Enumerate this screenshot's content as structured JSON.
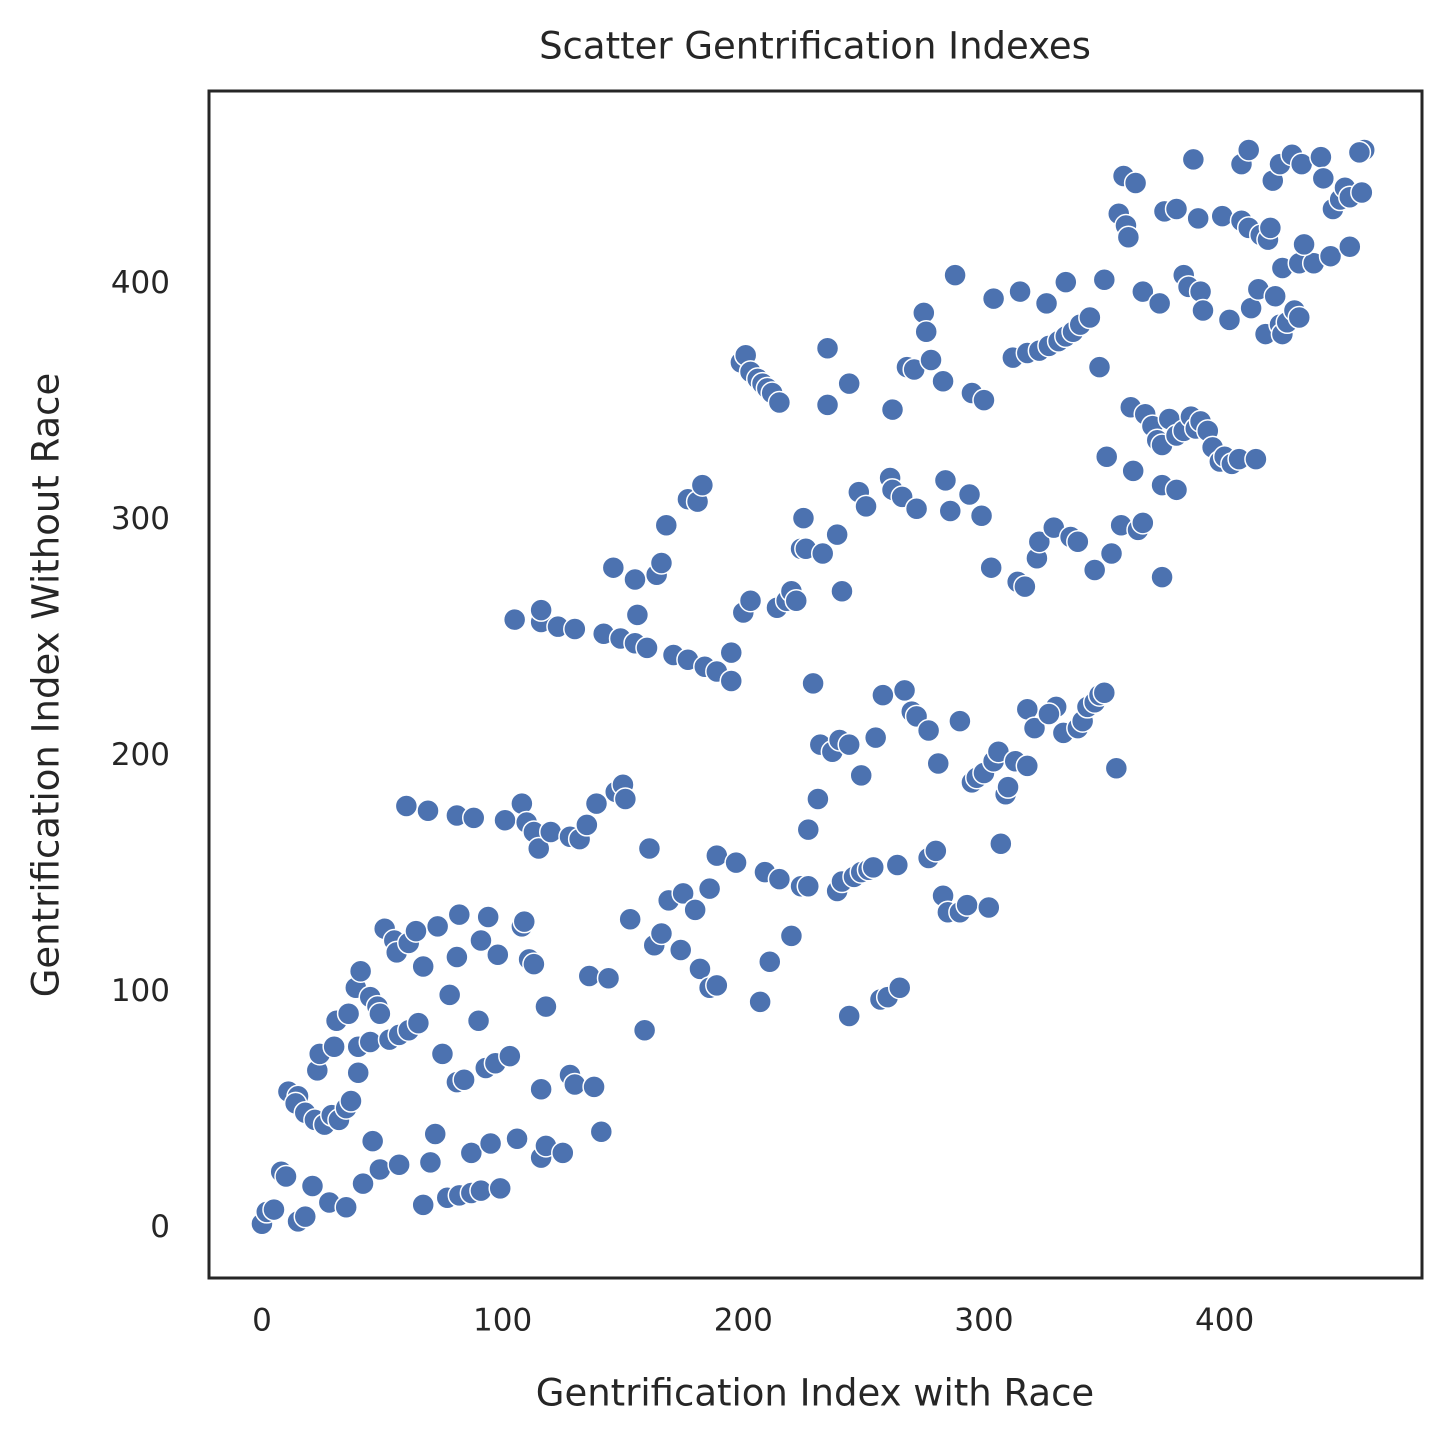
{
  "chart_data": {
    "type": "scatter",
    "title": "Scatter Gentrification Indexes",
    "x_label": "Gentrification Index with Race",
    "y_label": "Gentrification Index Without Race",
    "color": "#4c72b0",
    "grid": false,
    "xlim": [
      -22,
      482
    ],
    "ylim": [
      -21,
      482
    ],
    "xticks": [
      0,
      100,
      200,
      300,
      400
    ],
    "yticks": [
      0,
      100,
      200,
      300,
      400
    ],
    "x": [
      0,
      2,
      5,
      8,
      10,
      15,
      18,
      21,
      28,
      35,
      42,
      46,
      49,
      57,
      70,
      72,
      67,
      77,
      82,
      87,
      91,
      99,
      87,
      95,
      106,
      116,
      118,
      125,
      141,
      116,
      128,
      130,
      138,
      11,
      15,
      14,
      18,
      22,
      26,
      29,
      32,
      35,
      37,
      23,
      24,
      30,
      31,
      36,
      40,
      40,
      45,
      39,
      41,
      45,
      48,
      49,
      51,
      55,
      56,
      61,
      64,
      53,
      57,
      61,
      65,
      67,
      73,
      75,
      78,
      81,
      84,
      81,
      82,
      90,
      91,
      94,
      98,
      93,
      97,
      103,
      108,
      109,
      111,
      113,
      118,
      60,
      69,
      81,
      88,
      101,
      108,
      110,
      113,
      115,
      120,
      128,
      132,
      135,
      139,
      147,
      150,
      151,
      161,
      136,
      144,
      153,
      159,
      163,
      166,
      169,
      175,
      174,
      180,
      182,
      186,
      186,
      189,
      189,
      197,
      207,
      211,
      209,
      215,
      220,
      224,
      227,
      227,
      229,
      231,
      232,
      237,
      240,
      244,
      239,
      241,
      244,
      246,
      249,
      249,
      252,
      254,
      255,
      258,
      257,
      260,
      264,
      265,
      267,
      270,
      272,
      277,
      277,
      280,
      281,
      283,
      285,
      290,
      290,
      293,
      295,
      297,
      300,
      302,
      304,
      306,
      307,
      309,
      310,
      313,
      318,
      318,
      321,
      330,
      327,
      333,
      339,
      341,
      343,
      346,
      348,
      350,
      355,
      105,
      116,
      116,
      123,
      130,
      142,
      149,
      155,
      160,
      171,
      177,
      184,
      189,
      195,
      195,
      146,
      155,
      164,
      166,
      168,
      177,
      181,
      183,
      156,
      200,
      203,
      214,
      218,
      220,
      222,
      224,
      225,
      226,
      233,
      239,
      241,
      248,
      251,
      261,
      262,
      266,
      272,
      284,
      286,
      294,
      299,
      303,
      314,
      317,
      322,
      323,
      329,
      336,
      339,
      346,
      353,
      351,
      357,
      364,
      366,
      362,
      374,
      380,
      374,
      199,
      201,
      203,
      206,
      208,
      210,
      212,
      215,
      235,
      235,
      244,
      262,
      268,
      271,
      275,
      276,
      278,
      283,
      288,
      295,
      300,
      304,
      315,
      312,
      318,
      323,
      326,
      327,
      331,
      334,
      334,
      337,
      340,
      344,
      348,
      350,
      361,
      367,
      370,
      372,
      374,
      377,
      380,
      383,
      386,
      388,
      390,
      393,
      395,
      398,
      400,
      403,
      406,
      413,
      366,
      373,
      383,
      385,
      390,
      391,
      402,
      411,
      414,
      417,
      421,
      423,
      424,
      426,
      429,
      431,
      424,
      431,
      437,
      444,
      452,
      433,
      356,
      359,
      360,
      358,
      363,
      375,
      380,
      387,
      389,
      399,
      407,
      410,
      407,
      410,
      415,
      418,
      419,
      420,
      423,
      428,
      432,
      440,
      441,
      445,
      448,
      450,
      452,
      457,
      458,
      456
    ],
    "values": [
      2,
      7,
      8,
      24,
      22,
      3,
      5,
      18,
      11,
      9,
      19,
      37,
      25,
      27,
      28,
      40,
      10,
      13,
      14,
      15,
      16,
      17,
      32,
      36,
      38,
      30,
      35,
      32,
      41,
      59,
      65,
      61,
      60,
      58,
      56,
      53,
      49,
      46,
      44,
      48,
      46,
      51,
      54,
      67,
      74,
      77,
      88,
      91,
      66,
      77,
      79,
      102,
      109,
      98,
      94,
      91,
      127,
      122,
      117,
      121,
      126,
      80,
      82,
      84,
      87,
      111,
      128,
      74,
      99,
      62,
      63,
      115,
      133,
      88,
      122,
      132,
      116,
      68,
      70,
      73,
      128,
      130,
      114,
      112,
      94,
      179,
      177,
      175,
      174,
      173,
      180,
      172,
      168,
      161,
      168,
      166,
      165,
      171,
      180,
      185,
      188,
      182,
      161,
      107,
      106,
      131,
      84,
      120,
      125,
      139,
      142,
      118,
      135,
      110,
      144,
      102,
      103,
      158,
      155,
      96,
      113,
      151,
      148,
      124,
      145,
      145,
      169,
      231,
      182,
      205,
      202,
      207,
      205,
      143,
      147,
      90,
      149,
      151,
      192,
      152,
      153,
      208,
      226,
      97,
      98,
      154,
      102,
      228,
      219,
      217,
      211,
      157,
      160,
      197,
      141,
      134,
      215,
      134,
      137,
      189,
      191,
      193,
      136,
      198,
      202,
      163,
      184,
      187,
      198,
      196,
      220,
      212,
      221,
      218,
      210,
      212,
      215,
      221,
      223,
      226,
      227,
      195,
      258,
      257,
      262,
      255,
      254,
      252,
      250,
      248,
      246,
      243,
      241,
      238,
      236,
      232,
      244,
      280,
      275,
      277,
      282,
      298,
      309,
      308,
      315,
      260,
      261,
      266,
      263,
      266,
      270,
      266,
      288,
      301,
      288,
      286,
      294,
      270,
      312,
      306,
      318,
      313,
      310,
      305,
      317,
      304,
      311,
      302,
      280,
      274,
      272,
      284,
      291,
      297,
      293,
      291,
      279,
      286,
      327,
      298,
      296,
      299,
      321,
      315,
      313,
      276,
      367,
      370,
      363,
      360,
      358,
      356,
      354,
      350,
      373,
      349,
      358,
      347,
      365,
      364,
      388,
      380,
      368,
      359,
      404,
      354,
      351,
      394,
      397,
      369,
      371,
      372,
      392,
      374,
      376,
      401,
      378,
      380,
      383,
      386,
      365,
      402,
      348,
      345,
      340,
      334,
      332,
      343,
      336,
      338,
      344,
      339,
      342,
      338,
      331,
      325,
      327,
      324,
      326,
      326,
      397,
      392,
      404,
      399,
      397,
      389,
      385,
      390,
      398,
      379,
      395,
      383,
      379,
      384,
      389,
      386,
      407,
      409,
      409,
      412,
      416,
      417,
      430,
      425,
      420,
      446,
      443,
      431,
      432,
      453,
      428,
      429,
      427,
      424,
      451,
      457,
      421,
      419,
      424,
      444,
      451,
      455,
      451,
      454,
      445,
      432,
      436,
      441,
      437,
      439,
      457,
      456
    ]
  }
}
